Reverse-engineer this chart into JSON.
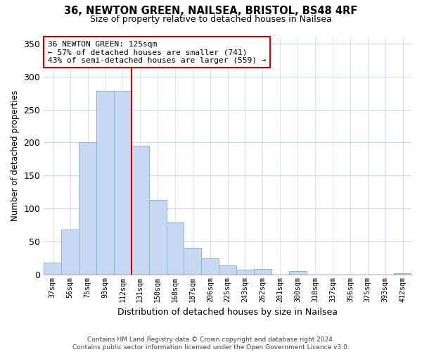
{
  "title_line1": "36, NEWTON GREEN, NAILSEA, BRISTOL, BS48 4RF",
  "title_line2": "Size of property relative to detached houses in Nailsea",
  "xlabel": "Distribution of detached houses by size in Nailsea",
  "ylabel": "Number of detached properties",
  "bar_labels": [
    "37sqm",
    "56sqm",
    "75sqm",
    "93sqm",
    "112sqm",
    "131sqm",
    "150sqm",
    "168sqm",
    "187sqm",
    "206sqm",
    "225sqm",
    "243sqm",
    "262sqm",
    "281sqm",
    "300sqm",
    "318sqm",
    "337sqm",
    "356sqm",
    "375sqm",
    "393sqm",
    "412sqm"
  ],
  "bar_values": [
    18,
    68,
    200,
    278,
    278,
    195,
    113,
    79,
    40,
    24,
    14,
    7,
    8,
    0,
    5,
    0,
    0,
    0,
    0,
    0,
    2
  ],
  "bar_color": "#c6d9f0",
  "bar_edge_color": "#8cb4d4",
  "vline_x": 5,
  "vline_color": "#cc0000",
  "annotation_text": "36 NEWTON GREEN: 125sqm\n← 57% of detached houses are smaller (741)\n43% of semi-detached houses are larger (559) →",
  "annotation_box_color": "#ffffff",
  "annotation_box_edge": "#cc0000",
  "ylim": [
    0,
    360
  ],
  "yticks": [
    0,
    50,
    100,
    150,
    200,
    250,
    300,
    350
  ],
  "footer": "Contains HM Land Registry data © Crown copyright and database right 2024.\nContains public sector information licensed under the Open Government Licence v3.0.",
  "bg_color": "#ffffff",
  "grid_color": "#ccd8ea"
}
